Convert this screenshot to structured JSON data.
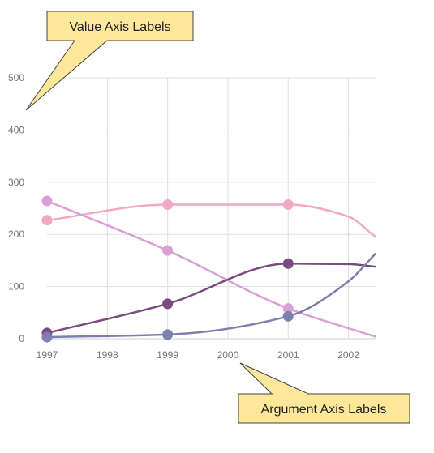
{
  "chart_data": {
    "type": "line",
    "x": [
      1997,
      1999,
      2001
    ],
    "x_ticks": [
      "1997",
      "1998",
      "1999",
      "2000",
      "2001",
      "2002"
    ],
    "xlim": [
      1997,
      2002.45
    ],
    "y_ticks": [
      "0",
      "100",
      "200",
      "300",
      "400",
      "500"
    ],
    "ylim": [
      0,
      500
    ],
    "grid": true,
    "series": [
      {
        "color": "#f0a9c4",
        "values": [
          227,
          257,
          257
        ],
        "tail": [
          [
            2002,
            234
          ],
          [
            2002.45,
            195
          ]
        ]
      },
      {
        "color": "#d99fd6",
        "values": [
          264,
          169,
          58
        ],
        "tail": [
          [
            2002,
            20
          ],
          [
            2002.45,
            4
          ]
        ]
      },
      {
        "color": "#7b4a7e",
        "values": [
          11,
          67,
          144
        ],
        "tail": [
          [
            2002,
            143
          ],
          [
            2002.45,
            138
          ]
        ]
      },
      {
        "color": "#7d80ad",
        "values": [
          3,
          8,
          43
        ],
        "tail": [
          [
            2002,
            110
          ],
          [
            2002.45,
            163
          ]
        ]
      }
    ]
  },
  "callouts": {
    "value_axis": "Value Axis Labels",
    "argument_axis": "Argument Axis Labels",
    "fill": "#fde79a"
  }
}
